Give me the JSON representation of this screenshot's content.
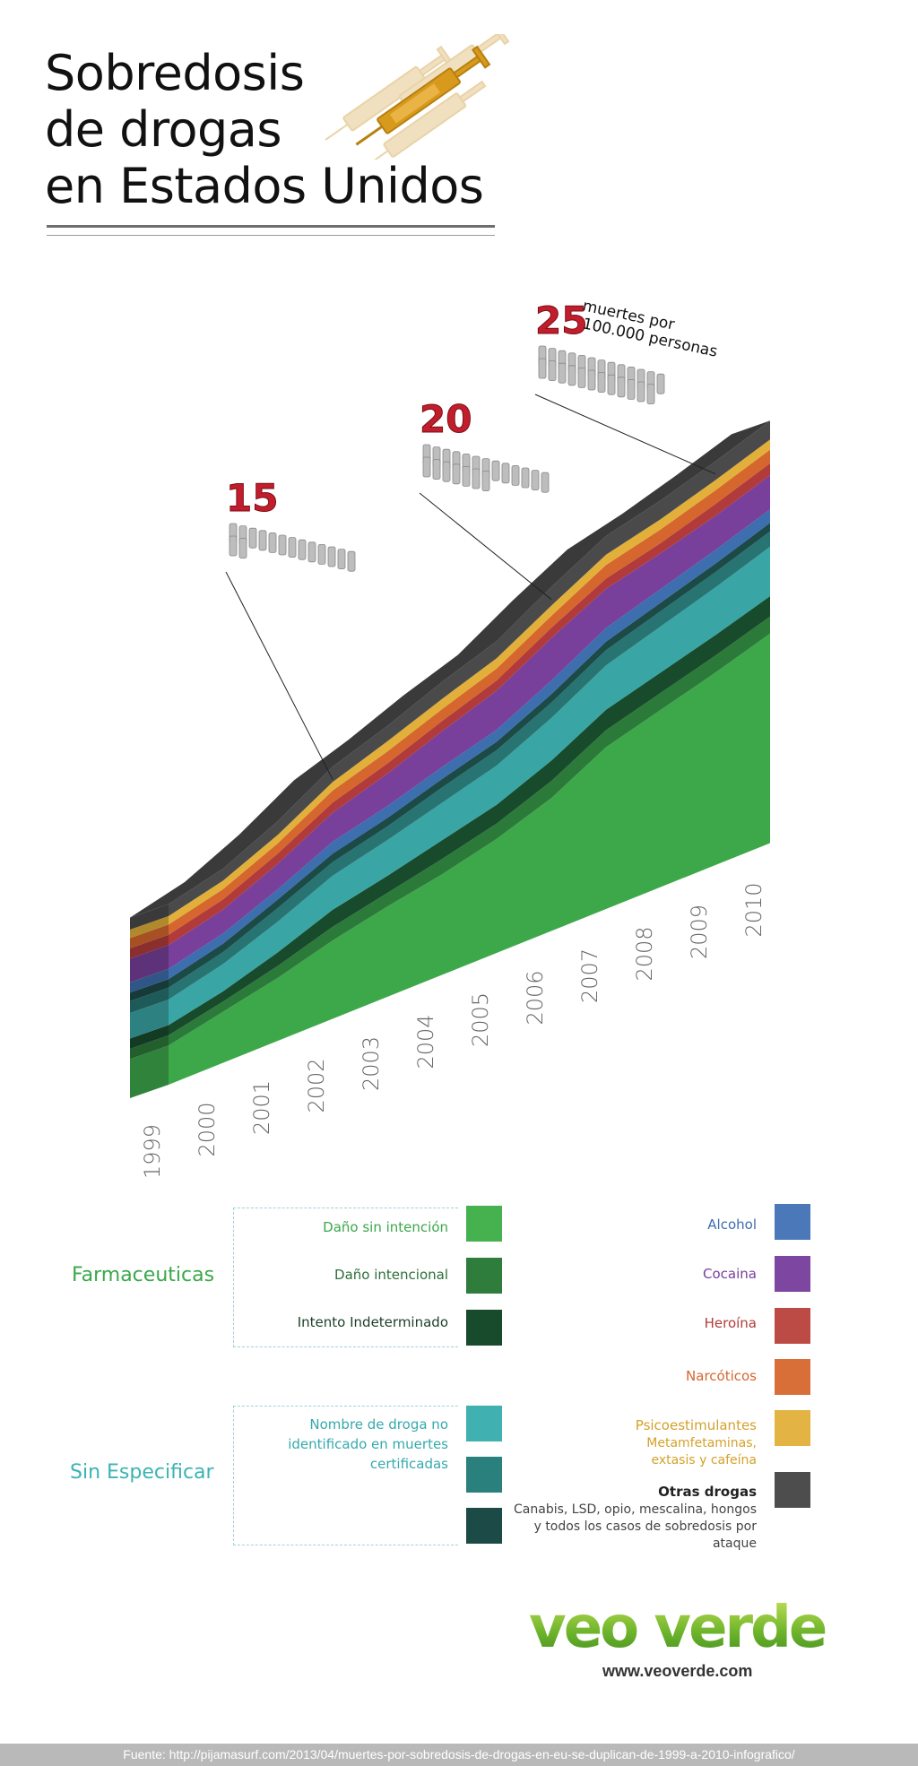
{
  "title_lines": [
    "Sobredosis",
    "de drogas",
    "en Estados Unidos"
  ],
  "chart_data": {
    "type": "area",
    "stacked": true,
    "x": [
      "1999",
      "2000",
      "2001",
      "2002",
      "2003",
      "2004",
      "2005",
      "2006",
      "2007",
      "2008",
      "2009",
      "2010"
    ],
    "ylabel": "muertes por 100.000 personas",
    "markers": [
      {
        "label": "15",
        "x": "2002"
      },
      {
        "label": "20",
        "x": "2006"
      },
      {
        "label": "25",
        "x": "2009",
        "note": "muertes por 100.000 personas"
      }
    ],
    "series": [
      {
        "name": "Daño sin intención",
        "color": "#3da84a",
        "values": [
          2.3,
          3.0,
          3.7,
          4.6,
          5.3,
          5.9,
          6.7,
          7.8,
          9.5,
          10.4,
          11.3,
          12.3
        ]
      },
      {
        "name": "Daño intencional",
        "color": "#2c7a3a",
        "values": [
          0.6,
          0.6,
          0.7,
          0.8,
          0.8,
          0.9,
          0.9,
          1.0,
          1.0,
          1.0,
          1.0,
          1.0
        ]
      },
      {
        "name": "Intento Indeterminado",
        "color": "#184a2c",
        "values": [
          0.6,
          0.6,
          0.8,
          1.0,
          1.0,
          1.1,
          1.1,
          1.2,
          1.2,
          1.2,
          1.2,
          1.2
        ]
      },
      {
        "name": "Nombre de droga no identificado en muertes certificadas",
        "color": "#3aa5a5",
        "values": [
          1.5,
          1.6,
          1.8,
          2.0,
          2.1,
          2.2,
          2.3,
          2.5,
          2.6,
          2.7,
          2.8,
          2.9
        ]
      },
      {
        "name": "",
        "color": "#277472",
        "values": [
          0.7,
          0.7,
          0.8,
          0.8,
          0.8,
          0.9,
          0.9,
          0.9,
          0.9,
          0.9,
          0.9,
          0.9
        ]
      },
      {
        "name": "",
        "color": "#1c4a46",
        "values": [
          0.5,
          0.5,
          0.5,
          0.5,
          0.5,
          0.5,
          0.5,
          0.5,
          0.5,
          0.5,
          0.5,
          0.5
        ]
      },
      {
        "name": "Alcohol",
        "color": "#3d6eae",
        "values": [
          0.6,
          0.6,
          0.6,
          0.7,
          0.7,
          0.7,
          0.7,
          0.8,
          0.8,
          0.8,
          0.8,
          0.8
        ]
      },
      {
        "name": "Cocaina",
        "color": "#78409a",
        "values": [
          1.4,
          1.4,
          1.5,
          1.7,
          1.9,
          2.1,
          2.3,
          2.5,
          2.3,
          2.1,
          2.0,
          2.0
        ]
      },
      {
        "name": "Heroína",
        "color": "#b13b3b",
        "values": [
          0.6,
          0.6,
          0.6,
          0.6,
          0.6,
          0.6,
          0.6,
          0.6,
          0.6,
          0.6,
          0.7,
          0.7
        ]
      },
      {
        "name": "Narcóticos",
        "color": "#d5662e",
        "values": [
          0.6,
          0.6,
          0.6,
          0.7,
          0.7,
          0.7,
          0.7,
          0.7,
          0.8,
          0.8,
          0.8,
          0.8
        ]
      },
      {
        "name": "Psicoestimulantes",
        "color": "#e2b03a",
        "values": [
          0.5,
          0.5,
          0.5,
          0.5,
          0.6,
          0.6,
          0.6,
          0.6,
          0.6,
          0.6,
          0.6,
          0.6
        ]
      },
      {
        "name": "Otras drogas",
        "color": "#4a4a4a",
        "values": [
          0.7,
          0.7,
          0.8,
          0.9,
          0.9,
          1.0,
          1.0,
          1.1,
          1.1,
          1.1,
          1.1,
          1.1
        ]
      }
    ]
  },
  "legend": {
    "farmaceuticas_title": "Farmaceuticas",
    "sin_especificar_title": "Sin Especificar",
    "dano_sin_intencion": "Daño sin intención",
    "dano_intencional": "Daño intencional",
    "intento_indeterminado": "Intento Indeterminado",
    "nombre_droga": "Nombre de droga no identificado en muertes certificadas",
    "alcohol": "Alcohol",
    "cocaina": "Cocaina",
    "heroina": "Heroína",
    "narcoticos": "Narcóticos",
    "psicoestimulantes": "Psicoestimulantes",
    "psicoestimulantes_sub": "Metamfetaminas, extasis y cafeína",
    "otras_drogas": "Otras drogas",
    "otras_drogas_sub": "Canabis, LSD, opio, mescalina, hongos y todos los casos de sobredosis por ataque"
  },
  "brand": {
    "logo_text": "veo verde",
    "url": "www.veoverde.com"
  },
  "footer": "Fuente: http://pijamasurf.com/2013/04/muertes-por-sobredosis-de-drogas-en-eu-se-duplican-de-1999-a-2010-infografico/"
}
